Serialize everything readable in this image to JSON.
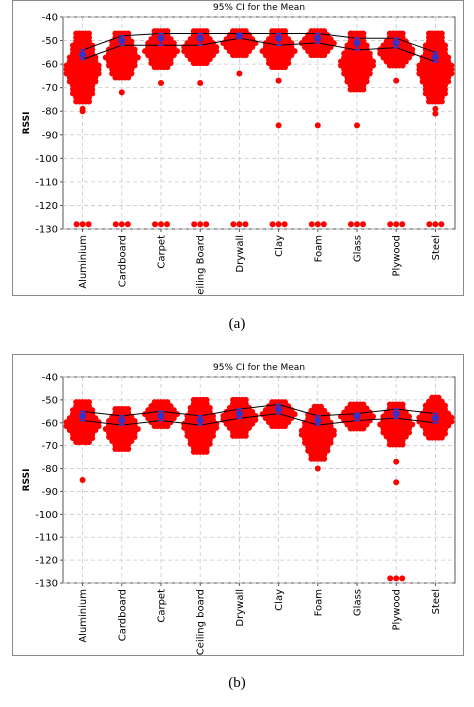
{
  "panels": [
    {
      "caption": "(a)",
      "chart_data": {
        "type": "scatter",
        "title": "95% CI for the Mean",
        "xlabel": "",
        "ylabel": "RSSI",
        "ylim": [
          -130,
          -40
        ],
        "yticks": [
          -40,
          -50,
          -60,
          -70,
          -80,
          -90,
          -100,
          -110,
          -120,
          -130
        ],
        "grid": true,
        "categories": [
          "Aluminium",
          "Cardboard",
          "Carpet",
          "Ceiling Board",
          "Drywall",
          "Clay",
          "Foam",
          "Glass",
          "Plywood",
          "Steel"
        ],
        "mean": [
          -56,
          -50,
          -49,
          -49,
          -48,
          -49,
          -49,
          -51,
          -51,
          -57
        ],
        "ci_upper": [
          -54,
          -48,
          -47,
          -47,
          -47,
          -47,
          -47,
          -49,
          -49,
          -55
        ],
        "ci_lower": [
          -58,
          -52,
          -52,
          -52,
          -49,
          -52,
          -51,
          -54,
          -53,
          -59
        ],
        "ranges": [
          {
            "top": -47,
            "bottom": -77
          },
          {
            "top": -47,
            "bottom": -67
          },
          {
            "top": -46,
            "bottom": -62
          },
          {
            "top": -46,
            "bottom": -61
          },
          {
            "top": -46,
            "bottom": -57
          },
          {
            "top": -46,
            "bottom": -62
          },
          {
            "top": -46,
            "bottom": -57
          },
          {
            "top": -47,
            "bottom": -72
          },
          {
            "top": -47,
            "bottom": -62
          },
          {
            "top": -47,
            "bottom": -77
          }
        ],
        "outliers": [
          [
            -79,
            -80,
            -128
          ],
          [
            -72,
            -128
          ],
          [
            -68,
            -128
          ],
          [
            -68,
            -128
          ],
          [
            -64,
            -128
          ],
          [
            -67,
            -86,
            -128
          ],
          [
            -86,
            -128
          ],
          [
            -70,
            -86,
            -128
          ],
          [
            -67,
            -128
          ],
          [
            -79,
            -81,
            -128
          ]
        ],
        "point_color": "#ff0000",
        "mean_color": "#3333cc",
        "ci_line_color": "#000000"
      }
    },
    {
      "caption": "(b)",
      "chart_data": {
        "type": "scatter",
        "title": "95% CI for the Mean",
        "xlabel": "",
        "ylabel": "RSSI",
        "ylim": [
          -130,
          -40
        ],
        "yticks": [
          -40,
          -50,
          -60,
          -70,
          -80,
          -90,
          -100,
          -110,
          -120,
          -130
        ],
        "grid": true,
        "categories": [
          "Aluminium",
          "Cardboard",
          "Carpet",
          "Ceiling board",
          "Drywall",
          "Clay",
          "Foam",
          "Glass",
          "Plywood",
          "Steel"
        ],
        "mean": [
          -57,
          -59,
          -57,
          -59,
          -56,
          -54,
          -59,
          -57,
          -56,
          -58
        ],
        "ci_upper": [
          -55,
          -57,
          -55,
          -57,
          -54,
          -52,
          -57,
          -56,
          -54,
          -56
        ],
        "ci_lower": [
          -59,
          -61,
          -59,
          -61,
          -58,
          -56,
          -61,
          -59,
          -58,
          -60
        ],
        "ranges": [
          {
            "top": -51,
            "bottom": -70
          },
          {
            "top": -54,
            "bottom": -72
          },
          {
            "top": -51,
            "bottom": -62
          },
          {
            "top": -50,
            "bottom": -73
          },
          {
            "top": -50,
            "bottom": -66
          },
          {
            "top": -51,
            "bottom": -62
          },
          {
            "top": -53,
            "bottom": -76
          },
          {
            "top": -52,
            "bottom": -63
          },
          {
            "top": -52,
            "bottom": -70
          },
          {
            "top": -49,
            "bottom": -68
          }
        ],
        "outliers": [
          [
            -85
          ],
          [],
          [],
          [],
          [],
          [],
          [
            -80
          ],
          [],
          [
            -77,
            -86,
            -128
          ],
          []
        ],
        "point_color": "#ff0000",
        "mean_color": "#3333cc",
        "ci_line_color": "#000000"
      }
    }
  ]
}
